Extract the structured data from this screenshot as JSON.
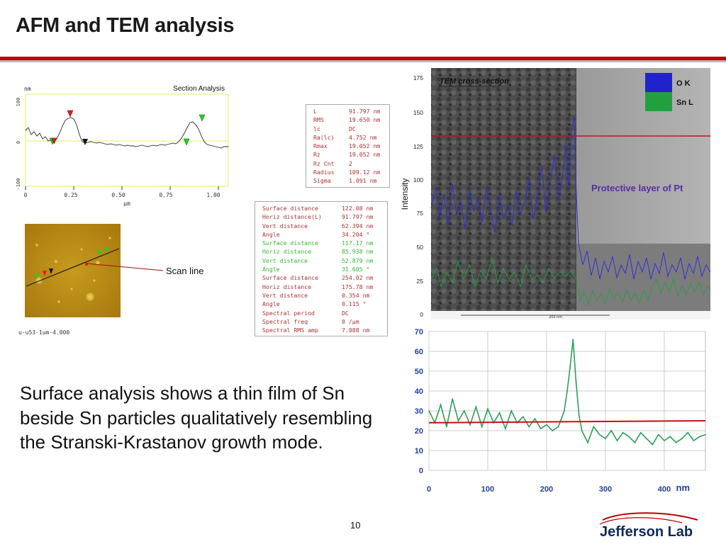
{
  "slide": {
    "title": "AFM and TEM analysis",
    "body_text": "Surface analysis shows a thin film of Sn beside Sn particles qualitatively resembling the Stranski-Krastanov growth mode.",
    "page_number": "10",
    "logo_text": "Jefferson Lab",
    "colors": {
      "title_rule": "#c00000",
      "afm_line": "#333333",
      "tem_ok": "#2b2bcc",
      "tem_snl": "#2aa045",
      "red_line": "#c81010"
    }
  },
  "section_analysis": {
    "title": "Section Analysis",
    "y_unit": "nm",
    "y_ticks": [
      "100",
      "0",
      "-100"
    ],
    "x_ticks": [
      "0",
      "0.25",
      "0.50",
      "0.75",
      "1.00"
    ],
    "x_unit": "µm",
    "image_label": "u-u53-1um-4.000",
    "scan_line_label": "Scan line"
  },
  "params_box_1": [
    [
      "L",
      "91.797 nm"
    ],
    [
      "RMS",
      "19.650 nm"
    ],
    [
      "lc",
      "DC"
    ],
    [
      "Ra(lc)",
      "4.752 nm"
    ],
    [
      "Rmax",
      "19.052 nm"
    ],
    [
      "Rz",
      "19.052 nm"
    ],
    [
      "Rz Cnt",
      "2"
    ],
    [
      "Radius",
      "109.12 nm"
    ],
    [
      "Sigma",
      "1.091 nm"
    ]
  ],
  "params_box_2": [
    [
      "Surface distance",
      "122.08 nm",
      "red"
    ],
    [
      "Horiz distance(L)",
      "91.797 nm",
      "red"
    ],
    [
      "Vert distance",
      "62.394 nm",
      "red"
    ],
    [
      "Angle",
      "34.204 °",
      "red"
    ],
    [
      "Surface distance",
      "117.17 nm",
      "green"
    ],
    [
      "Horiz distance",
      "85.938 nm",
      "green"
    ],
    [
      "Vert distance",
      "52.879 nm",
      "green"
    ],
    [
      "Angle",
      "31.605 °",
      "green"
    ],
    [
      "Surface distance",
      "254.02 nm",
      "red"
    ],
    [
      "Horiz distance",
      "175.78 nm",
      "red"
    ],
    [
      "Vert distance",
      "0.354 nm",
      "red"
    ],
    [
      "Angle",
      "0.115 °",
      "red"
    ],
    [
      "Spectral period",
      "DC",
      "red"
    ],
    [
      "Spectral freq",
      "0 /µm",
      "red"
    ],
    [
      "Spectral RMS amp",
      "7.088 nm",
      "red"
    ]
  ],
  "tem_image": {
    "caption": "TEM cross-section",
    "legend": [
      "O K",
      "Sn L"
    ],
    "annotation": "Protective layer of Pt",
    "y_label": "Intensity",
    "y_ticks": [
      "175",
      "150",
      "125",
      "100",
      "75",
      "50",
      "25",
      "0"
    ],
    "scale_label": "200 nm"
  },
  "chart_data": {
    "type": "line",
    "title": "",
    "xlabel": "nm",
    "ylabel": "",
    "xlim": [
      0,
      470
    ],
    "ylim": [
      0,
      70
    ],
    "x_ticks": [
      "0",
      "100",
      "200",
      "300",
      "400"
    ],
    "y_ticks": [
      "70",
      "60",
      "50",
      "40",
      "30",
      "20",
      "10",
      "0"
    ],
    "grid": true,
    "series": [
      {
        "color": "#2aa058",
        "x": [
          0,
          10,
          20,
          30,
          40,
          50,
          60,
          70,
          80,
          90,
          100,
          110,
          120,
          130,
          140,
          150,
          160,
          170,
          180,
          190,
          200,
          210,
          220,
          230,
          235,
          240,
          245,
          250,
          255,
          260,
          270,
          280,
          290,
          300,
          310,
          320,
          330,
          340,
          350,
          360,
          370,
          380,
          390,
          400,
          410,
          420,
          430,
          440,
          450,
          460,
          470
        ],
        "y": [
          30,
          24,
          33,
          22,
          36,
          25,
          30,
          23,
          32,
          22,
          31,
          24,
          29,
          21,
          30,
          24,
          27,
          22,
          26,
          21,
          23,
          20,
          22,
          30,
          40,
          52,
          66,
          45,
          28,
          20,
          14,
          22,
          18,
          16,
          20,
          15,
          19,
          17,
          14,
          19,
          16,
          13,
          18,
          15,
          17,
          14,
          16,
          19,
          15,
          17,
          18
        ]
      },
      {
        "color": "#c81010",
        "x": [
          0,
          470
        ],
        "y": [
          24,
          25
        ]
      }
    ]
  }
}
